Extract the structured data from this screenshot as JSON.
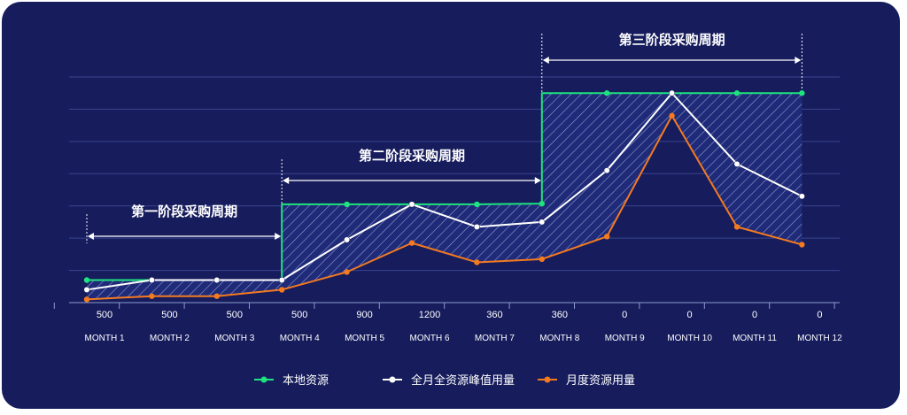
{
  "chart_data": {
    "type": "line",
    "categories": [
      "MONTH 1",
      "MONTH 2",
      "MONTH 3",
      "MONTH 4",
      "MONTH 5",
      "MONTH 6",
      "MONTH 7",
      "MONTH 8",
      "MONTH 9",
      "MONTH 10",
      "MONTH 11",
      "MONTH 12"
    ],
    "tick_values": [
      "500",
      "500",
      "500",
      "500",
      "900",
      "1200",
      "360",
      "360",
      "0",
      "0",
      "0",
      "0"
    ],
    "series": [
      {
        "name": "本地资源",
        "color": "#1ee37f",
        "values": [
          0.7,
          0.7,
          0.7,
          0.7,
          3.05,
          3.05,
          3.05,
          3.07,
          6.5,
          6.5,
          6.5,
          6.5
        ]
      },
      {
        "name": "全月全资源峰值用量",
        "color": "#ffffff",
        "values": [
          0.4,
          0.7,
          0.7,
          0.7,
          1.95,
          3.05,
          2.35,
          2.5,
          4.1,
          6.5,
          4.3,
          3.3
        ]
      },
      {
        "name": "月度资源用量",
        "color": "#f47a20",
        "values": [
          0.1,
          0.2,
          0.2,
          0.4,
          0.95,
          1.85,
          1.25,
          1.35,
          2.05,
          5.8,
          2.35,
          1.8
        ]
      }
    ],
    "ylim": [
      0,
      7
    ],
    "grid": true,
    "legend_position": "bottom",
    "phases": [
      {
        "label": "第一阶段采购周期",
        "from": "MONTH 1",
        "to": "MONTH 4"
      },
      {
        "label": "第二阶段采购周期",
        "from": "MONTH 4",
        "to": "MONTH 8"
      },
      {
        "label": "第三阶段采购周期",
        "from": "MONTH 8",
        "to": "MONTH 12"
      }
    ]
  }
}
